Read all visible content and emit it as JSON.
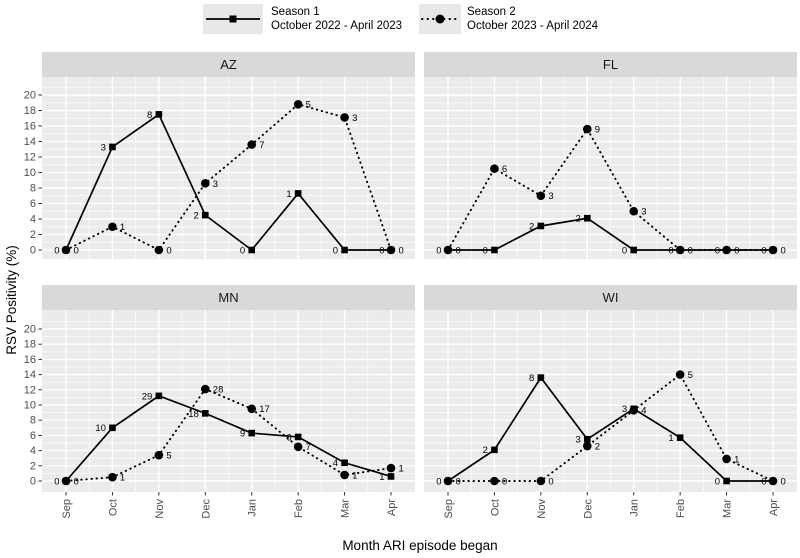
{
  "figure": {
    "x_axis_title": "Month ARI episode began",
    "y_axis_title": "RSV Positivity (%)"
  },
  "legend": {
    "position": "top",
    "items": [
      {
        "name": "Season 1",
        "date_range": "October 2022 - April 2023",
        "marker": "square",
        "line_style": "solid"
      },
      {
        "name": "Season 2",
        "date_range": "October 2023 - April 2024",
        "marker": "circle",
        "line_style": "dotted"
      }
    ]
  },
  "chart_data": {
    "type": "line",
    "faceted": true,
    "facet_labels": [
      "AZ",
      "FL",
      "MN",
      "WI"
    ],
    "xlabel": "Month ARI episode began",
    "ylabel": "RSV Positivity (%)",
    "x_categories": [
      "Sep",
      "Oct",
      "Nov",
      "Dec",
      "Jan",
      "Feb",
      "Mar",
      "Apr"
    ],
    "ylim": [
      0,
      20
    ],
    "y_ticks": [
      0,
      2,
      4,
      6,
      8,
      10,
      12,
      14,
      16,
      18,
      20
    ],
    "grid": "white major+minor on grey panel",
    "legend_position": "top",
    "facets": [
      {
        "label": "AZ",
        "series": [
          {
            "name": "Season 1",
            "values": [
              0,
              13.3,
              17.5,
              4.5,
              0,
              7.3,
              0,
              0
            ],
            "counts": [
              0,
              3,
              8,
              2,
              0,
              1,
              0,
              0
            ]
          },
          {
            "name": "Season 2",
            "values": [
              0,
              3.0,
              0,
              8.6,
              13.6,
              18.8,
              17.1,
              0
            ],
            "counts": [
              0,
              1,
              0,
              3,
              7,
              5,
              3,
              0
            ]
          }
        ]
      },
      {
        "label": "FL",
        "series": [
          {
            "name": "Season 1",
            "values": [
              0,
              0,
              3.1,
              4.1,
              0,
              0,
              0,
              0
            ],
            "counts": [
              0,
              0,
              2,
              2,
              0,
              0,
              0,
              0
            ]
          },
          {
            "name": "Season 2",
            "values": [
              0,
              10.5,
              7.0,
              15.6,
              5.0,
              0,
              0,
              0
            ],
            "counts": [
              0,
              6,
              3,
              9,
              3,
              0,
              0,
              0
            ]
          }
        ]
      },
      {
        "label": "MN",
        "series": [
          {
            "name": "Season 1",
            "values": [
              0,
              7.0,
              11.2,
              8.9,
              6.3,
              5.8,
              2.4,
              0.6
            ],
            "counts": [
              0,
              10,
              29,
              18,
              9,
              6,
              4,
              1
            ]
          },
          {
            "name": "Season 2",
            "values": [
              0,
              0.5,
              3.4,
              12.1,
              9.5,
              4.5,
              0.8,
              1.7
            ],
            "counts": [
              0,
              1,
              5,
              28,
              17,
              7,
              1,
              1
            ]
          }
        ]
      },
      {
        "label": "WI",
        "series": [
          {
            "name": "Season 1",
            "values": [
              0,
              4.1,
              13.6,
              5.5,
              9.5,
              5.7,
              0,
              0
            ],
            "counts": [
              0,
              2,
              8,
              3,
              3,
              1,
              0,
              0
            ]
          },
          {
            "name": "Season 2",
            "values": [
              0,
              0,
              0,
              4.6,
              9.3,
              14.0,
              2.9,
              0
            ],
            "counts": [
              0,
              0,
              0,
              2,
              4,
              5,
              1,
              0
            ]
          }
        ]
      }
    ],
    "colors": {
      "foreground": "#000000",
      "panel_bg": "#EBEBEB",
      "strip_bg": "#D9D9D9",
      "gridline": "#FFFFFF",
      "tick_label": "#4D4D4D",
      "legend_key_bg": "#E8E8E8"
    }
  }
}
